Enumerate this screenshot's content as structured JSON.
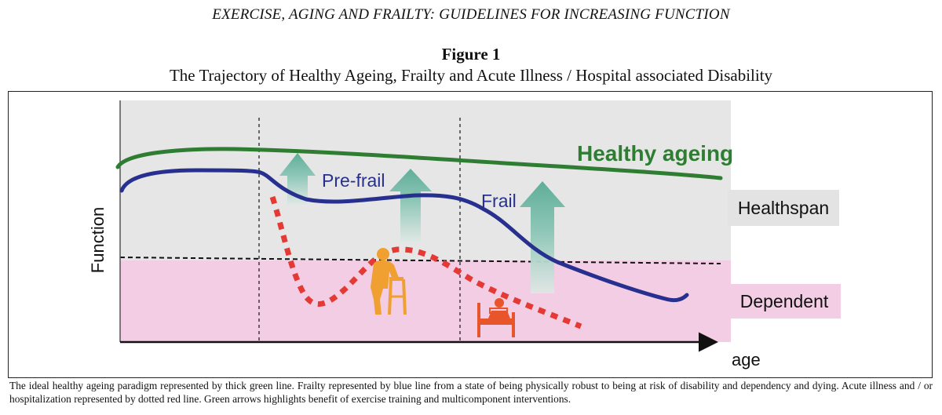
{
  "running_head": "EXERCISE, AGING AND FRAILTY: GUIDELINES FOR INCREASING FUNCTION",
  "figure": {
    "label": "Figure 1",
    "title": "The Trajectory of Healthy Ageing, Frailty and Acute Illness / Hospital associated Disability",
    "labels": {
      "healthy_ageing": "Healthy ageing",
      "pre_frail": "Pre-frail",
      "frail": "Frail",
      "healthspan": "Healthspan",
      "dependent": "Dependent",
      "y_axis": "Function",
      "x_axis": "age"
    },
    "colors": {
      "healthy_line": "#2e7d32",
      "frailty_line": "#28308f",
      "illness_line": "#e53935",
      "healthspan_zone": "#e6e6e6",
      "dependent_zone": "#f3cde3",
      "arrow": "#6fb7a4",
      "person_icon": "#f0a030",
      "bed_icon": "#e8552b"
    },
    "icons": [
      "walker-person-icon",
      "hospital-bed-icon"
    ]
  },
  "caption": "The ideal healthy ageing paradigm represented by thick green line. Frailty represented by blue line from a state of being physically robust to being at risk of disability and dependency and dying. Acute illness and / or hospitalization represented by dotted red line. Green arrows highlights benefit of exercise training and multicomponent interventions."
}
